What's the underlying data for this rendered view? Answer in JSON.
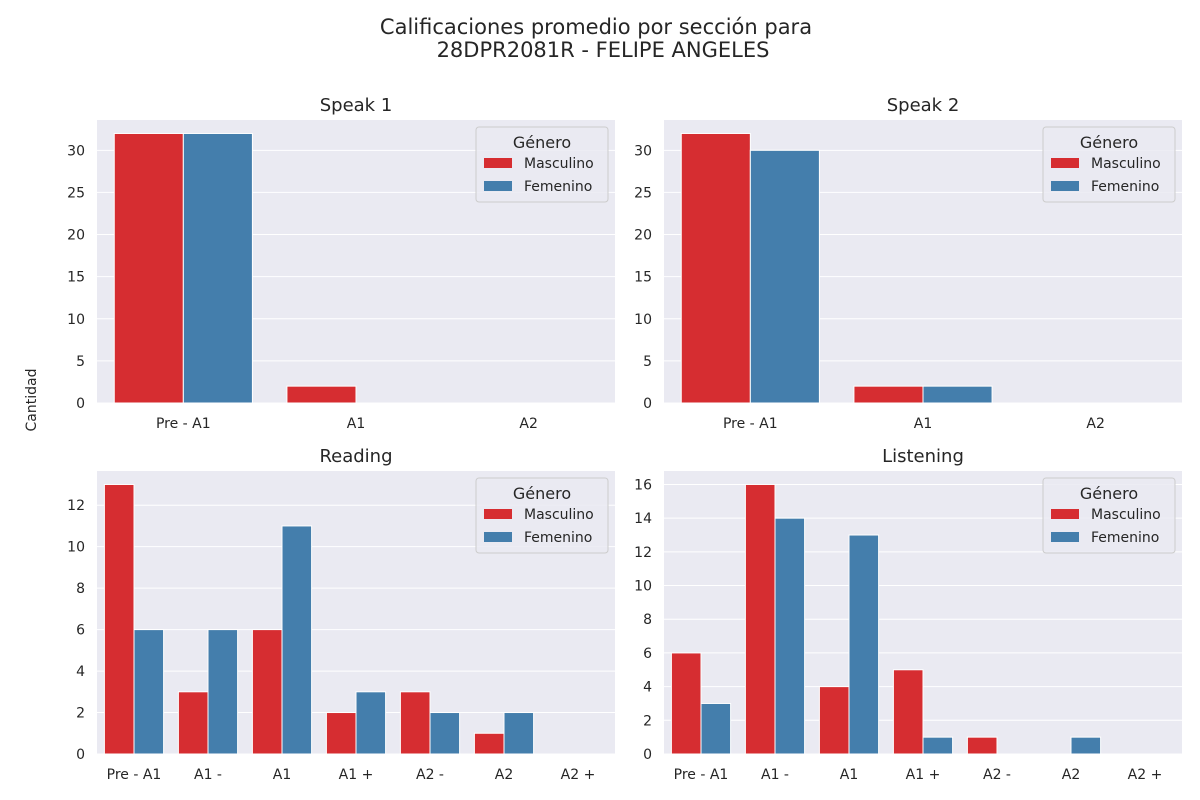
{
  "figure": {
    "suptitle_line1": "Calificaciones promedio por sección para",
    "suptitle_line2": "28DPR2081R - FELIPE ANGELES",
    "ylabel": "Cantidad"
  },
  "colors": {
    "Masculino": "#d62d31",
    "Femenino": "#447eac",
    "axes_bg": "#eaeaf2",
    "grid": "#ffffff"
  },
  "chart_data": [
    {
      "type": "bar",
      "title": "Speak 1",
      "categories": [
        "Pre - A1",
        "A1",
        "A2"
      ],
      "series": [
        {
          "name": "Masculino",
          "values": [
            32,
            2,
            0
          ]
        },
        {
          "name": "Femenino",
          "values": [
            32,
            0,
            0
          ]
        }
      ],
      "ylim": [
        0,
        33.6
      ],
      "yticks": [
        0,
        5,
        10,
        15,
        20,
        25,
        30
      ],
      "legend": {
        "title": "Género",
        "placement": "upper right"
      },
      "grid": true
    },
    {
      "type": "bar",
      "title": "Speak 2",
      "categories": [
        "Pre - A1",
        "A1",
        "A2"
      ],
      "series": [
        {
          "name": "Masculino",
          "values": [
            32,
            2,
            0
          ]
        },
        {
          "name": "Femenino",
          "values": [
            30,
            2,
            0
          ]
        }
      ],
      "ylim": [
        0,
        33.6
      ],
      "yticks": [
        0,
        5,
        10,
        15,
        20,
        25,
        30
      ],
      "legend": {
        "title": "Género",
        "placement": "upper right"
      },
      "grid": true
    },
    {
      "type": "bar",
      "title": "Reading",
      "categories": [
        "Pre - A1",
        "A1 -",
        "A1",
        "A1 +",
        "A2 -",
        "A2",
        "A2 +"
      ],
      "series": [
        {
          "name": "Masculino",
          "values": [
            13,
            3,
            6,
            2,
            3,
            1,
            0
          ]
        },
        {
          "name": "Femenino",
          "values": [
            6,
            6,
            11,
            3,
            2,
            2,
            0
          ]
        }
      ],
      "ylim": [
        0,
        13.65
      ],
      "yticks": [
        0,
        2,
        4,
        6,
        8,
        10,
        12
      ],
      "legend": {
        "title": "Género",
        "placement": "upper right"
      },
      "grid": true
    },
    {
      "type": "bar",
      "title": "Listening",
      "categories": [
        "Pre - A1",
        "A1 -",
        "A1",
        "A1 +",
        "A2 -",
        "A2",
        "A2 +"
      ],
      "series": [
        {
          "name": "Masculino",
          "values": [
            6,
            16,
            4,
            5,
            1,
            0,
            0
          ]
        },
        {
          "name": "Femenino",
          "values": [
            3,
            14,
            13,
            1,
            0,
            1,
            0
          ]
        }
      ],
      "ylim": [
        0,
        16.8
      ],
      "yticks": [
        0,
        2,
        4,
        6,
        8,
        10,
        12,
        14,
        16
      ],
      "legend": {
        "title": "Género",
        "placement": "upper right"
      },
      "grid": true
    }
  ]
}
